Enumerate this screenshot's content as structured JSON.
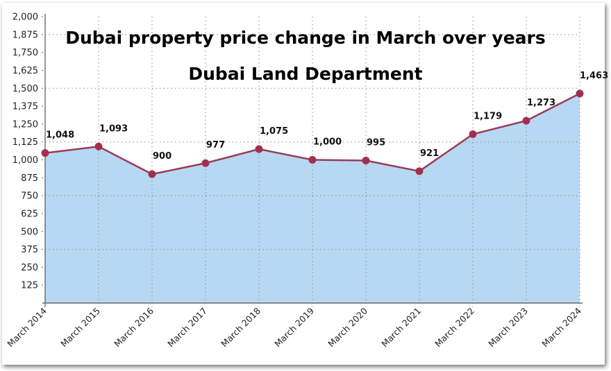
{
  "chart_data": {
    "type": "area",
    "title": "Dubai property price change in March over years",
    "subtitle": "Dubai Land Department",
    "categories": [
      "March 2014",
      "March 2015",
      "March 2016",
      "March 2017",
      "March 2018",
      "March 2019",
      "March 2020",
      "March 2021",
      "March 2022",
      "March 2023",
      "March 2024"
    ],
    "values": [
      1048,
      1093,
      900,
      977,
      1075,
      1000,
      995,
      921,
      1179,
      1273,
      1463
    ],
    "data_labels": [
      "1,048",
      "1,093",
      "900",
      "977",
      "1,075",
      "1,000",
      "995",
      "921",
      "1,179",
      "1,273",
      "1,463"
    ],
    "ylim": [
      0,
      2000
    ],
    "yticks": [
      125,
      250,
      375,
      500,
      625,
      750,
      875,
      1000,
      1125,
      1250,
      1375,
      1500,
      1625,
      1750,
      1875,
      2000
    ],
    "ytick_labels": [
      "125",
      "250",
      "375",
      "500",
      "625",
      "750",
      "875",
      "1,000",
      "1,125",
      "1,250",
      "1,375",
      "1,500",
      "1,625",
      "1,750",
      "1,875",
      "2,000"
    ],
    "horizontal_grid": [
      375,
      750,
      1125,
      1500,
      1875
    ],
    "vertical_grid": true,
    "colors": {
      "fill": "#b7d8f3",
      "line": "#9a3b58",
      "marker": "#a3304b"
    }
  }
}
